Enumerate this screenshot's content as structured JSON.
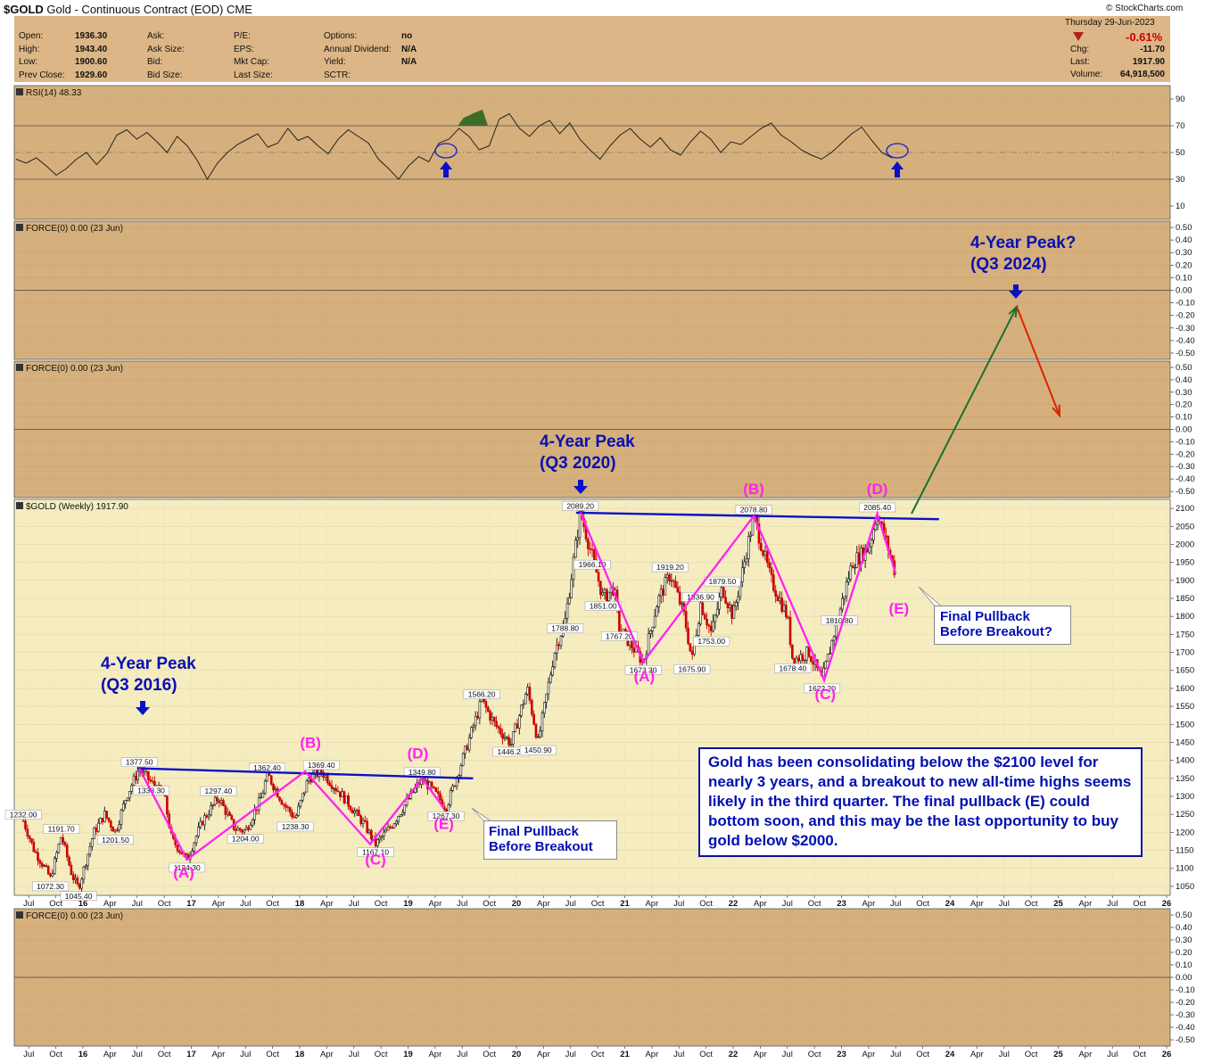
{
  "header": {
    "symbol": "$GOLD",
    "name": "Gold - Continuous Contract (EOD)",
    "exchange": "CME",
    "source": "© StockCharts.com",
    "date": "Thursday  29-Jun-2023",
    "stats_left": [
      {
        "label": "Open:",
        "value": "1936.30"
      },
      {
        "label": "High:",
        "value": "1943.40"
      },
      {
        "label": "Low:",
        "value": "1900.60"
      },
      {
        "label": "Prev Close:",
        "value": "1929.60"
      }
    ],
    "stats_mid1": [
      {
        "label": "Ask:",
        "value": ""
      },
      {
        "label": "Ask Size:",
        "value": ""
      },
      {
        "label": "Bid:",
        "value": ""
      },
      {
        "label": "Bid Size:",
        "value": ""
      }
    ],
    "stats_mid2": [
      {
        "label": "P/E:",
        "value": ""
      },
      {
        "label": "EPS:",
        "value": ""
      },
      {
        "label": "Mkt Cap:",
        "value": ""
      },
      {
        "label": "Last Size:",
        "value": ""
      }
    ],
    "stats_mid3": [
      {
        "label": "Options:",
        "value": "no"
      },
      {
        "label": "Annual Dividend:",
        "value": "N/A"
      },
      {
        "label": "Yield:",
        "value": "N/A"
      },
      {
        "label": "SCTR:",
        "value": ""
      }
    ],
    "change_pct": "-0.61%",
    "stats_right": [
      {
        "label": "Chg:",
        "value": "-11.70"
      },
      {
        "label": "Last:",
        "value": "1917.90"
      },
      {
        "label": "Volume:",
        "value": "64,918,500"
      }
    ]
  },
  "panels": {
    "rsi_label": "RSI(14) 48.33",
    "force1_label": "FORCE(0) 0.00 (23 Jun)",
    "force2_label": "FORCE(0) 0.00 (23 Jun)",
    "price_label": "$GOLD (Weekly) 1917.90",
    "force3_label": "FORCE(0) 0.00 (23 Jun)"
  },
  "annotations": {
    "peak2016": [
      "4-Year Peak",
      "(Q3 2016)"
    ],
    "peak2020": [
      "4-Year Peak",
      "(Q3 2020)"
    ],
    "peak2024": [
      "4-Year Peak?",
      "(Q3 2024)"
    ],
    "note1": [
      "Final Pullback",
      "Before Breakout"
    ],
    "note2": [
      "Final Pullback",
      "Before Breakout?"
    ],
    "summary": "Gold has been consolidating below the $2100 level for nearly 3 years, and a breakout to new all-time highs seems likely in the third quarter. The final pullback (E) could bottom soon, and this may be the last opportunity to buy gold below $2000."
  },
  "colors": {
    "panel_bg": "#d6b07c",
    "price_bg": "#f5ecc0",
    "wave": "#ff22ee",
    "trend": "#0a10c8",
    "label_blue": "#0a10b0",
    "up_arrow": "#1a7030",
    "down_arrow": "#dd2200",
    "candle_up": "#111111",
    "candle_down": "#cc0000",
    "header_bg": "#dcb686"
  },
  "chart_data": [
    {
      "type": "line",
      "title": "RSI(14) 48.33",
      "ylim": [
        0,
        100
      ],
      "yticks": [
        10,
        30,
        50,
        70,
        90
      ],
      "series": [
        {
          "name": "RSI(14)",
          "values": [
            45,
            42,
            46,
            40,
            33,
            38,
            45,
            50,
            41,
            49,
            63,
            67,
            60,
            65,
            58,
            50,
            62,
            55,
            44,
            30,
            42,
            50,
            56,
            60,
            64,
            54,
            57,
            68,
            59,
            62,
            55,
            49,
            60,
            67,
            62,
            57,
            45,
            38,
            30,
            40,
            47,
            43,
            57,
            60,
            68,
            62,
            52,
            55,
            75,
            79,
            68,
            62,
            70,
            74,
            64,
            72,
            60,
            52,
            45,
            55,
            63,
            68,
            60,
            54,
            61,
            52,
            48,
            58,
            66,
            60,
            50,
            58,
            56,
            62,
            68,
            72,
            63,
            58,
            52,
            48,
            45,
            50,
            57,
            64,
            69,
            59,
            50,
            46
          ]
        }
      ]
    },
    {
      "type": "line",
      "title": "FORCE(0) 0.00 (23 Jun)",
      "ylim": [
        -0.55,
        0.55
      ],
      "yticks": [
        0.5,
        0.4,
        0.3,
        0.2,
        0.1,
        0.0,
        -0.1,
        -0.2,
        -0.3,
        -0.4,
        -0.5
      ],
      "series": [
        {
          "name": "FORCE(0)",
          "values": [
            0
          ]
        }
      ]
    },
    {
      "type": "line",
      "title": "FORCE(0) 0.00 (23 Jun)",
      "ylim": [
        -0.55,
        0.55
      ],
      "yticks": [
        0.5,
        0.4,
        0.3,
        0.2,
        0.1,
        0.0,
        -0.1,
        -0.2,
        -0.3,
        -0.4,
        -0.5
      ],
      "series": [
        {
          "name": "FORCE(0)",
          "values": [
            0
          ]
        }
      ]
    },
    {
      "type": "line",
      "title": "$GOLD (Weekly) 1917.90",
      "ylim": [
        1025,
        2125
      ],
      "yticks": [
        1050,
        1100,
        1150,
        1200,
        1250,
        1300,
        1350,
        1400,
        1450,
        1500,
        1550,
        1600,
        1650,
        1700,
        1750,
        1800,
        1850,
        1900,
        1950,
        2000,
        2050,
        2100
      ],
      "x_ticks": [
        "Jul",
        "Oct",
        "16",
        "Apr",
        "Jul",
        "Oct",
        "17",
        "Apr",
        "Jul",
        "Oct",
        "18",
        "Apr",
        "Jul",
        "Oct",
        "19",
        "Apr",
        "Jul",
        "Oct",
        "20",
        "Apr",
        "Jul",
        "Oct",
        "21",
        "Apr",
        "Jul",
        "Oct",
        "22",
        "Apr",
        "Jul",
        "Oct",
        "23",
        "Apr",
        "Jul",
        "Oct",
        "24",
        "Apr",
        "Jul",
        "Oct",
        "25",
        "Apr",
        "Jul",
        "Oct",
        "26"
      ],
      "series": [
        {
          "name": "$GOLD",
          "points": [
            [
              2015.45,
              1232.0
            ],
            [
              2015.55,
              1150.0
            ],
            [
              2015.65,
              1100.0
            ],
            [
              2015.7,
              1072.3
            ],
            [
              2015.8,
              1191.7
            ],
            [
              2015.9,
              1080.0
            ],
            [
              2015.96,
              1045.4
            ],
            [
              2016.1,
              1200.0
            ],
            [
              2016.2,
              1250.0
            ],
            [
              2016.3,
              1201.5
            ],
            [
              2016.4,
              1300.0
            ],
            [
              2016.52,
              1377.5
            ],
            [
              2016.63,
              1338.3
            ],
            [
              2016.75,
              1300.0
            ],
            [
              2016.82,
              1180.0
            ],
            [
              2016.96,
              1124.3
            ],
            [
              2017.1,
              1230.0
            ],
            [
              2017.25,
              1297.4
            ],
            [
              2017.4,
              1210.0
            ],
            [
              2017.5,
              1204.0
            ],
            [
              2017.65,
              1300.0
            ],
            [
              2017.7,
              1362.4
            ],
            [
              2017.85,
              1280.0
            ],
            [
              2017.96,
              1238.3
            ],
            [
              2018.08,
              1350.0
            ],
            [
              2018.2,
              1369.4
            ],
            [
              2018.4,
              1300.0
            ],
            [
              2018.6,
              1220.0
            ],
            [
              2018.7,
              1167.1
            ],
            [
              2018.85,
              1220.0
            ],
            [
              2019.0,
              1290.0
            ],
            [
              2019.13,
              1349.8
            ],
            [
              2019.3,
              1290.0
            ],
            [
              2019.35,
              1267.3
            ],
            [
              2019.5,
              1400.0
            ],
            [
              2019.68,
              1566.2
            ],
            [
              2019.8,
              1500.0
            ],
            [
              2019.95,
              1446.2
            ],
            [
              2020.1,
              1600.0
            ],
            [
              2020.2,
              1450.9
            ],
            [
              2020.35,
              1700.0
            ],
            [
              2020.45,
              1788.8
            ],
            [
              2020.59,
              2089.2
            ],
            [
              2020.7,
              1966.1
            ],
            [
              2020.8,
              1851.0
            ],
            [
              2020.9,
              1880.0
            ],
            [
              2020.95,
              1767.2
            ],
            [
              2021.17,
              1673.3
            ],
            [
              2021.3,
              1840.0
            ],
            [
              2021.42,
              1919.2
            ],
            [
              2021.55,
              1800.0
            ],
            [
              2021.62,
              1675.9
            ],
            [
              2021.7,
              1836.9
            ],
            [
              2021.8,
              1753.0
            ],
            [
              2021.9,
              1879.5
            ],
            [
              2022.0,
              1800.0
            ],
            [
              2022.19,
              2078.8
            ],
            [
              2022.35,
              1900.0
            ],
            [
              2022.5,
              1800.0
            ],
            [
              2022.55,
              1678.4
            ],
            [
              2022.7,
              1700.0
            ],
            [
              2022.82,
              1622.2
            ],
            [
              2022.98,
              1810.8
            ],
            [
              2023.1,
              1950.0
            ],
            [
              2023.25,
              1990.0
            ],
            [
              2023.33,
              2085.4
            ],
            [
              2023.42,
              2000.0
            ],
            [
              2023.5,
              1917.9
            ]
          ]
        }
      ],
      "data_labels": [
        "1232.00",
        "1191.70",
        "1072.30",
        "1045.40",
        "1201.50",
        "1377.50",
        "1338.30",
        "1124.30",
        "1297.40",
        "1204.00",
        "1362.40",
        "1238.30",
        "1369.40",
        "1167.10",
        "1349.80",
        "1267.30",
        "1566.20",
        "1446.20",
        "1450.90",
        "1788.80",
        "2089.20",
        "1966.10",
        "1851.00",
        "1767.20",
        "1673.30",
        "1919.20",
        "1836.90",
        "1675.90",
        "1879.50",
        "1753.00",
        "2078.80",
        "1678.40",
        "1622.20",
        "2085.40",
        "1810.80"
      ],
      "wave_labels": [
        "(A)",
        "(B)",
        "(C)",
        "(D)",
        "(E)"
      ]
    },
    {
      "type": "line",
      "title": "FORCE(0) 0.00 (23 Jun)",
      "ylim": [
        -0.55,
        0.55
      ],
      "yticks": [
        0.5,
        0.4,
        0.3,
        0.2,
        0.1,
        0.0,
        -0.1,
        -0.2,
        -0.3,
        -0.4,
        -0.5
      ],
      "series": [
        {
          "name": "FORCE(0)",
          "values": [
            0
          ]
        }
      ]
    }
  ]
}
